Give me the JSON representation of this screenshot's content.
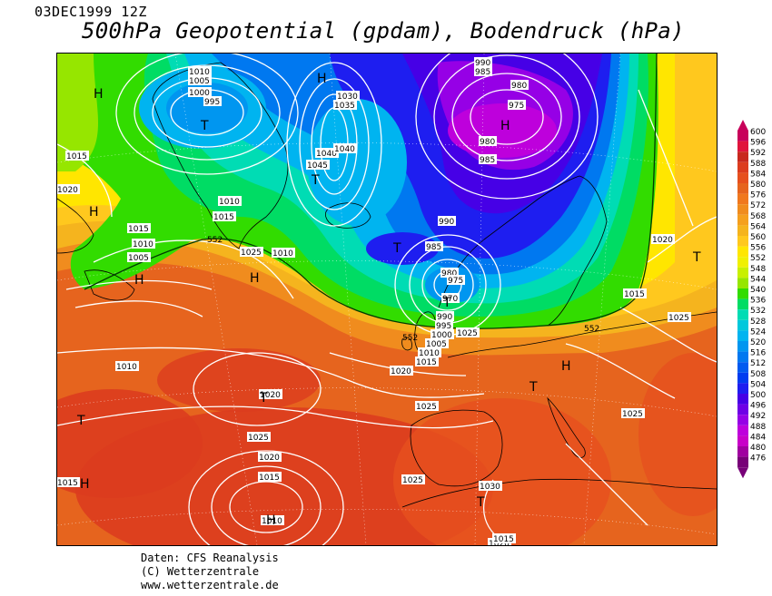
{
  "header": {
    "date": "03DEC1999 12Z",
    "title": "500hPa Geopotential (gpdam), Bodendruck (hPa)"
  },
  "footer": {
    "line1": "Daten: CFS Reanalysis",
    "line2": "(C) Wetterzentrale",
    "line3": "www.wetterzentrale.de"
  },
  "legend": {
    "levels": [
      "600",
      "596",
      "592",
      "588",
      "584",
      "580",
      "576",
      "572",
      "568",
      "564",
      "560",
      "556",
      "552",
      "548",
      "544",
      "540",
      "536",
      "532",
      "528",
      "524",
      "520",
      "516",
      "512",
      "508",
      "504",
      "500",
      "496",
      "492",
      "488",
      "484",
      "480",
      "476"
    ],
    "colors": [
      "#c8005a",
      "#e0143c",
      "#c8281e",
      "#dc3c1e",
      "#e6501e",
      "#e6641e",
      "#f0781e",
      "#f08c1e",
      "#f5a01e",
      "#f5b41e",
      "#ffc81e",
      "#ffe600",
      "#f0f000",
      "#c8f000",
      "#96e600",
      "#32dc00",
      "#00dc64",
      "#00dcb4",
      "#00c8dc",
      "#00b4f0",
      "#0096f0",
      "#0078f0",
      "#005af0",
      "#003cf0",
      "#1e1ef0",
      "#4600e6",
      "#6e00e6",
      "#9600e6",
      "#be00dc",
      "#c800c8",
      "#a000a0",
      "#780078"
    ]
  },
  "map": {
    "pressure_systems": [
      {
        "letter": "H",
        "type": "high"
      },
      {
        "letter": "T",
        "type": "low"
      },
      {
        "letter": "H",
        "type": "high"
      },
      {
        "letter": "T",
        "type": "low"
      },
      {
        "letter": "H",
        "type": "high"
      },
      {
        "letter": "H",
        "type": "high"
      },
      {
        "letter": "T",
        "type": "low"
      },
      {
        "letter": "H",
        "type": "high"
      },
      {
        "letter": "H",
        "type": "high"
      },
      {
        "letter": "T",
        "type": "low"
      },
      {
        "letter": "H",
        "type": "high"
      },
      {
        "letter": "T",
        "type": "low"
      },
      {
        "letter": "T",
        "type": "low"
      },
      {
        "letter": "T",
        "type": "low"
      },
      {
        "letter": "H",
        "type": "high"
      },
      {
        "letter": "T",
        "type": "low"
      },
      {
        "letter": "T",
        "type": "low"
      },
      {
        "letter": "H",
        "type": "high"
      }
    ],
    "isobar_labels": [
      "1010",
      "1005",
      "1000",
      "995",
      "1030",
      "1035",
      "1040",
      "1045",
      "1040",
      "990",
      "985",
      "980",
      "975",
      "980",
      "985",
      "1010",
      "1015",
      "1015",
      "1010",
      "1005",
      "1025",
      "990",
      "985",
      "980",
      "975",
      "970",
      "1010",
      "1015",
      "1020",
      "1025",
      "990",
      "995",
      "1000",
      "1005",
      "1010",
      "1015",
      "1020",
      "1010",
      "1020",
      "1025",
      "1025",
      "1020",
      "1015",
      "1010",
      "1025",
      "1030",
      "1025",
      "1020",
      "1015",
      "1020",
      "1025",
      "1015",
      "1015"
    ],
    "contour_labels": [
      "552",
      "552",
      "552"
    ]
  }
}
